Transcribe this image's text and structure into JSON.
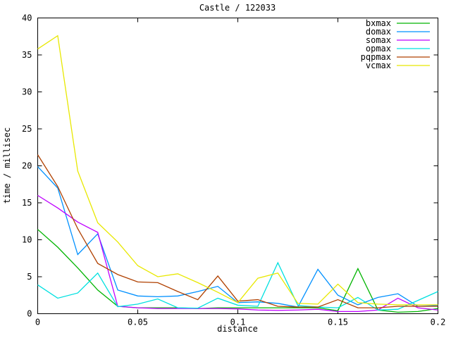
{
  "window": {
    "background": "#ffffff",
    "axis_color": "#000000"
  },
  "chart_data": {
    "type": "line",
    "title": "Castle / 122033",
    "xlabel": "distance",
    "ylabel": "time / millisec",
    "xlim": [
      0,
      0.2
    ],
    "ylim": [
      0,
      40
    ],
    "grid": false,
    "legend_position": "top-right-inside",
    "xticks": {
      "values": [
        0,
        0.05,
        0.1,
        0.15,
        0.2
      ],
      "labels": [
        "0",
        "0.05",
        "0.1",
        "0.15",
        "0.2"
      ]
    },
    "yticks": {
      "values": [
        0,
        5,
        10,
        15,
        20,
        25,
        30,
        35,
        40
      ],
      "labels": [
        "0",
        "5",
        "10",
        "15",
        "20",
        "25",
        "30",
        "35",
        "40"
      ]
    },
    "x": [
      0,
      0.01,
      0.02,
      0.03,
      0.04,
      0.05,
      0.06,
      0.07,
      0.08,
      0.09,
      0.1,
      0.11,
      0.12,
      0.13,
      0.14,
      0.15,
      0.16,
      0.17,
      0.18,
      0.19,
      0.2
    ],
    "series": [
      {
        "name": "bxmax",
        "color": "#00b400",
        "values": [
          11.4,
          9.0,
          6.2,
          3.2,
          1.0,
          0.8,
          0.8,
          0.8,
          0.7,
          0.8,
          0.8,
          0.8,
          0.8,
          0.8,
          0.8,
          0.4,
          6.1,
          0.5,
          0.2,
          0.3,
          0.7
        ]
      },
      {
        "name": "domax",
        "color": "#0090ff",
        "values": [
          19.9,
          17.0,
          8.0,
          10.8,
          3.2,
          2.4,
          2.3,
          2.4,
          3.0,
          3.7,
          1.5,
          1.6,
          1.4,
          0.9,
          6.0,
          2.5,
          1.2,
          2.2,
          2.7,
          1.0,
          1.1
        ]
      },
      {
        "name": "somax",
        "color": "#bf00ff",
        "values": [
          16.0,
          14.3,
          12.4,
          11.0,
          1.0,
          0.8,
          0.7,
          0.7,
          0.7,
          0.7,
          0.65,
          0.5,
          0.45,
          0.5,
          0.6,
          0.3,
          0.3,
          0.5,
          2.1,
          0.8,
          0.5
        ]
      },
      {
        "name": "opmax",
        "color": "#00e0e0",
        "values": [
          3.9,
          2.1,
          2.8,
          5.5,
          0.95,
          1.3,
          2.0,
          0.8,
          0.75,
          2.1,
          1.15,
          1.0,
          6.9,
          1.1,
          0.9,
          0.8,
          2.2,
          0.5,
          0.6,
          1.8,
          3.0
        ]
      },
      {
        "name": "pqpmax",
        "color": "#b04000",
        "values": [
          21.5,
          17.2,
          11.5,
          6.8,
          5.3,
          4.3,
          4.2,
          3.0,
          1.9,
          5.1,
          1.7,
          1.9,
          1.0,
          0.9,
          0.9,
          1.9,
          0.8,
          0.8,
          1.0,
          1.0,
          1.0
        ]
      },
      {
        "name": "vcmax",
        "color": "#e8e800",
        "values": [
          35.8,
          37.6,
          19.3,
          12.3,
          9.7,
          6.5,
          5.0,
          5.4,
          4.2,
          2.9,
          1.5,
          4.8,
          5.5,
          1.4,
          1.3,
          4.0,
          1.5,
          1.3,
          1.2,
          1.2,
          1.2
        ]
      }
    ]
  }
}
